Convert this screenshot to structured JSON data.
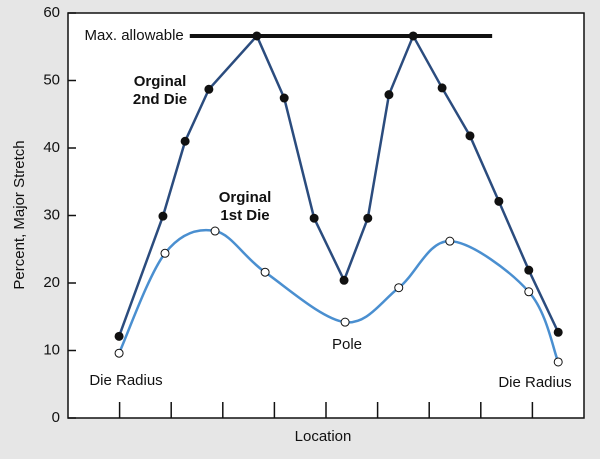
{
  "chart_data": {
    "type": "line",
    "xlabel": "Location",
    "ylabel": "Percent, Major Stretch",
    "xlim": [
      0,
      100
    ],
    "xticks": [
      10,
      20,
      30,
      40,
      50,
      60,
      70,
      80,
      90
    ],
    "ylim": [
      0,
      60
    ],
    "yticks": [
      0,
      10,
      20,
      30,
      40,
      50,
      60
    ],
    "series": [
      {
        "name": "Orginal 2nd Die",
        "color": "#2b4c7e",
        "marker": "filled",
        "smooth": false,
        "x": [
          9.9,
          18.4,
          22.7,
          27.3,
          36.6,
          41.9,
          47.7,
          53.5,
          58.1,
          62.2,
          66.9,
          72.5,
          77.9,
          83.5,
          89.3,
          95.0
        ],
        "values": [
          12.1,
          29.9,
          41.0,
          48.7,
          56.6,
          47.4,
          29.6,
          20.4,
          29.6,
          47.9,
          56.6,
          48.9,
          41.8,
          32.1,
          21.9,
          12.7
        ]
      },
      {
        "name": "Orginal 1st Die",
        "color": "#4a8fd0",
        "marker": "open",
        "smooth": true,
        "x": [
          9.9,
          18.8,
          28.5,
          38.2,
          53.7,
          64.1,
          74.0,
          89.3,
          95.0
        ],
        "values": [
          9.6,
          24.4,
          27.7,
          21.6,
          14.2,
          19.3,
          26.2,
          18.7,
          8.3
        ]
      }
    ],
    "reference_line": {
      "label": "Max. allowable",
      "value": 56.6,
      "x": [
        23.6,
        82.2
      ],
      "color": "#111111"
    },
    "annotations": [
      {
        "lines": [
          "Orginal",
          "2nd Die"
        ]
      },
      {
        "lines": [
          "Orginal",
          "1st Die"
        ]
      },
      {
        "lines": [
          "Pole"
        ]
      },
      {
        "lines": [
          "Die Radius"
        ]
      },
      {
        "lines": [
          "Die Radius"
        ]
      }
    ]
  }
}
